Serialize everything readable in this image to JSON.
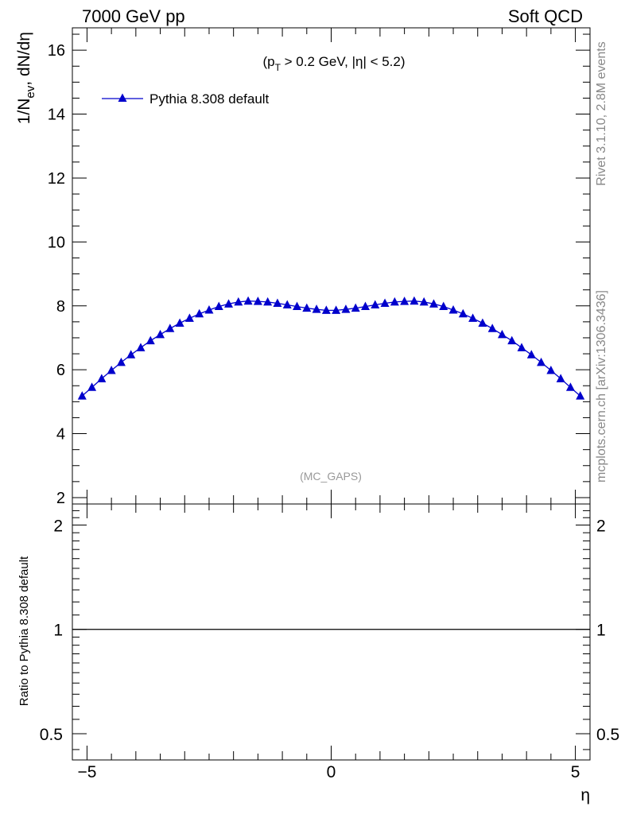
{
  "header": {
    "left": "7000 GeV pp",
    "right": "Soft QCD"
  },
  "side_labels": {
    "rivet": "Rivet 3.1.10,  2.8M events",
    "mcplots": "mcplots.cern.ch [arXiv:1306.3436]"
  },
  "chart_data": [
    {
      "type": "line",
      "title": "",
      "ylabel": "1/N_ev, dN/dη",
      "xlabel": "η",
      "xlim": [
        -5.3,
        5.3
      ],
      "ylim": [
        1.8,
        16.7
      ],
      "yticks": [
        2,
        4,
        6,
        8,
        10,
        12,
        14,
        16
      ],
      "annotation": "(p_T > 0.2 GeV, |η| < 5.2)",
      "annotation_parts": {
        "open": "(p",
        "sub": "T",
        "rest": " > 0.2 GeV, |η| < 5.2)"
      },
      "watermark": "(MC_GAPS)",
      "legend_position": "top-left",
      "series": [
        {
          "name": "Pythia 8.308 default",
          "color": "#0000cc",
          "marker": "triangle",
          "x": [
            -5.1,
            -4.9,
            -4.7,
            -4.5,
            -4.3,
            -4.1,
            -3.9,
            -3.7,
            -3.5,
            -3.3,
            -3.1,
            -2.9,
            -2.7,
            -2.5,
            -2.3,
            -2.1,
            -1.9,
            -1.7,
            -1.5,
            -1.3,
            -1.1,
            -0.9,
            -0.7,
            -0.5,
            -0.3,
            -0.1,
            0.1,
            0.3,
            0.5,
            0.7,
            0.9,
            1.1,
            1.3,
            1.5,
            1.7,
            1.9,
            2.1,
            2.3,
            2.5,
            2.7,
            2.9,
            3.1,
            3.3,
            3.5,
            3.7,
            3.9,
            4.1,
            4.3,
            4.5,
            4.7,
            4.9,
            5.1
          ],
          "values": [
            5.18,
            5.45,
            5.72,
            5.98,
            6.23,
            6.47,
            6.69,
            6.91,
            7.1,
            7.29,
            7.46,
            7.61,
            7.75,
            7.87,
            7.98,
            8.06,
            8.12,
            8.15,
            8.14,
            8.12,
            8.08,
            8.03,
            7.98,
            7.93,
            7.89,
            7.86,
            7.86,
            7.89,
            7.93,
            7.98,
            8.03,
            8.08,
            8.12,
            8.14,
            8.15,
            8.12,
            8.06,
            7.98,
            7.87,
            7.75,
            7.61,
            7.46,
            7.29,
            7.1,
            6.91,
            6.69,
            6.47,
            6.23,
            5.98,
            5.72,
            5.45,
            5.18
          ]
        }
      ]
    },
    {
      "type": "line",
      "title": "",
      "ylabel": "Ratio to Pythia 8.308 default",
      "xlabel": "η",
      "xlim": [
        -5.3,
        5.3
      ],
      "ylim": [
        0.42,
        2.3
      ],
      "scale": "log",
      "yticks": [
        0.5,
        1,
        2
      ],
      "ytick_labels": [
        "0.5",
        "1",
        "2"
      ],
      "xticks": [
        -5,
        0,
        5
      ],
      "xtick_labels": [
        "−5",
        "0",
        "5"
      ],
      "series": [
        {
          "x": [
            -5.3,
            5.3
          ],
          "values": [
            1,
            1
          ]
        }
      ]
    }
  ]
}
